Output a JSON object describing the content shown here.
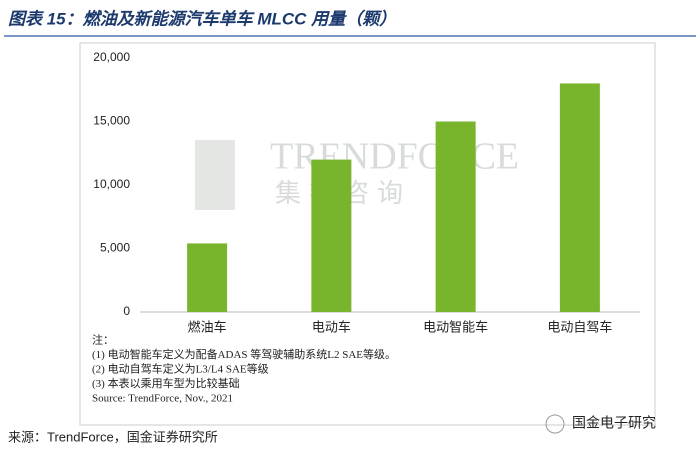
{
  "chart_data": {
    "type": "bar",
    "title": "图表 15：燃油及新能源汽车单车 MLCC 用量（颗）",
    "categories": [
      "燃油车",
      "电动车",
      "电动智能车",
      "电动自驾车"
    ],
    "values": [
      5400,
      12000,
      15000,
      18000
    ],
    "color": "#78b42c",
    "ylim": [
      0,
      20000
    ],
    "yticks": [
      0,
      {
        "value": 5000,
        "label": "5,000"
      },
      {
        "value": 10000,
        "label": "10,000"
      },
      {
        "value": 15000,
        "label": "15,000"
      },
      {
        "value": 20000,
        "label": "20,000"
      }
    ],
    "grid": false,
    "watermark": [
      "TRENDFORCE",
      "集邦咨询"
    ],
    "notes": [
      "注：",
      "(1) 电动智能车定义为配备ADAS 等驾驶辅助系统L2 SAE等级。",
      "(2) 电动自驾车定义为L3/L4 SAE等级",
      "(3) 本表以乘用车型为比较基础",
      "Source: TrendForce, Nov., 2021"
    ],
    "source": "来源：TrendForce，国金证券研究所",
    "logo": "国金电子研究"
  }
}
